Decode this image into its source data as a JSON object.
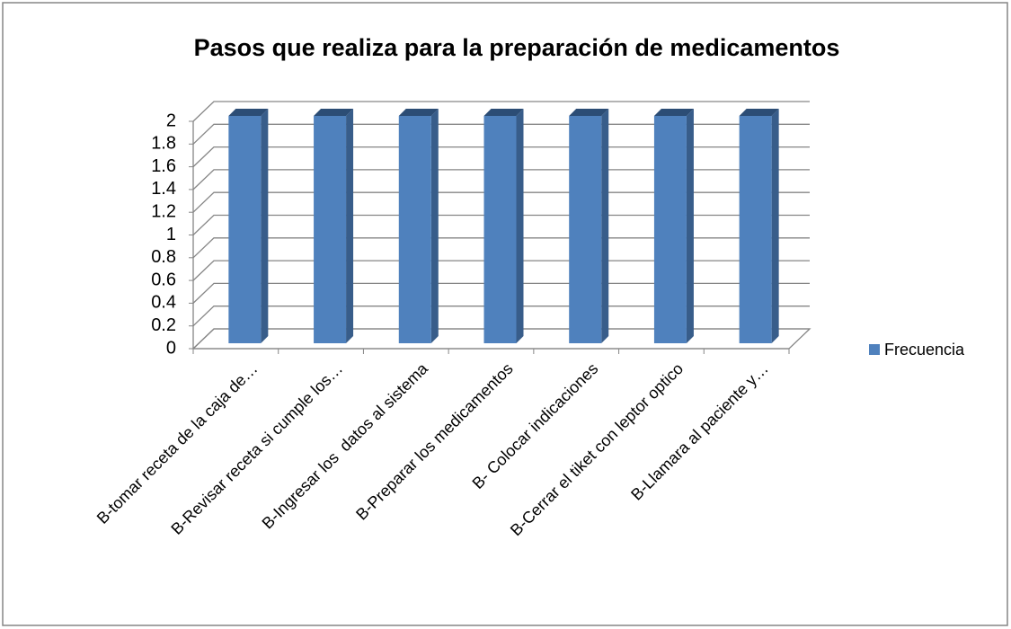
{
  "chart_data": {
    "type": "bar",
    "title": "Pasos que realiza para la preparación de medicamentos",
    "categories": [
      "B-tomar receta de la caja de…",
      "B-Revisar receta si cumple los…",
      "B-Ingresar los  datos al sistema",
      "B-Preparar los medicamentos",
      "B- Colocar indicaciones",
      "B-Cerrar el tiket con leptor optico",
      "B-Llamara al paciente y…"
    ],
    "series": [
      {
        "name": "Frecuencia",
        "color": "#4f81bd",
        "values": [
          2,
          2,
          2,
          2,
          2,
          2,
          2
        ]
      }
    ],
    "ylim": [
      0,
      2
    ],
    "yticks": [
      0,
      0.2,
      0.4,
      0.6,
      0.8,
      1,
      1.2,
      1.4,
      1.6,
      1.8,
      2
    ],
    "grid": true,
    "legend": "right"
  }
}
